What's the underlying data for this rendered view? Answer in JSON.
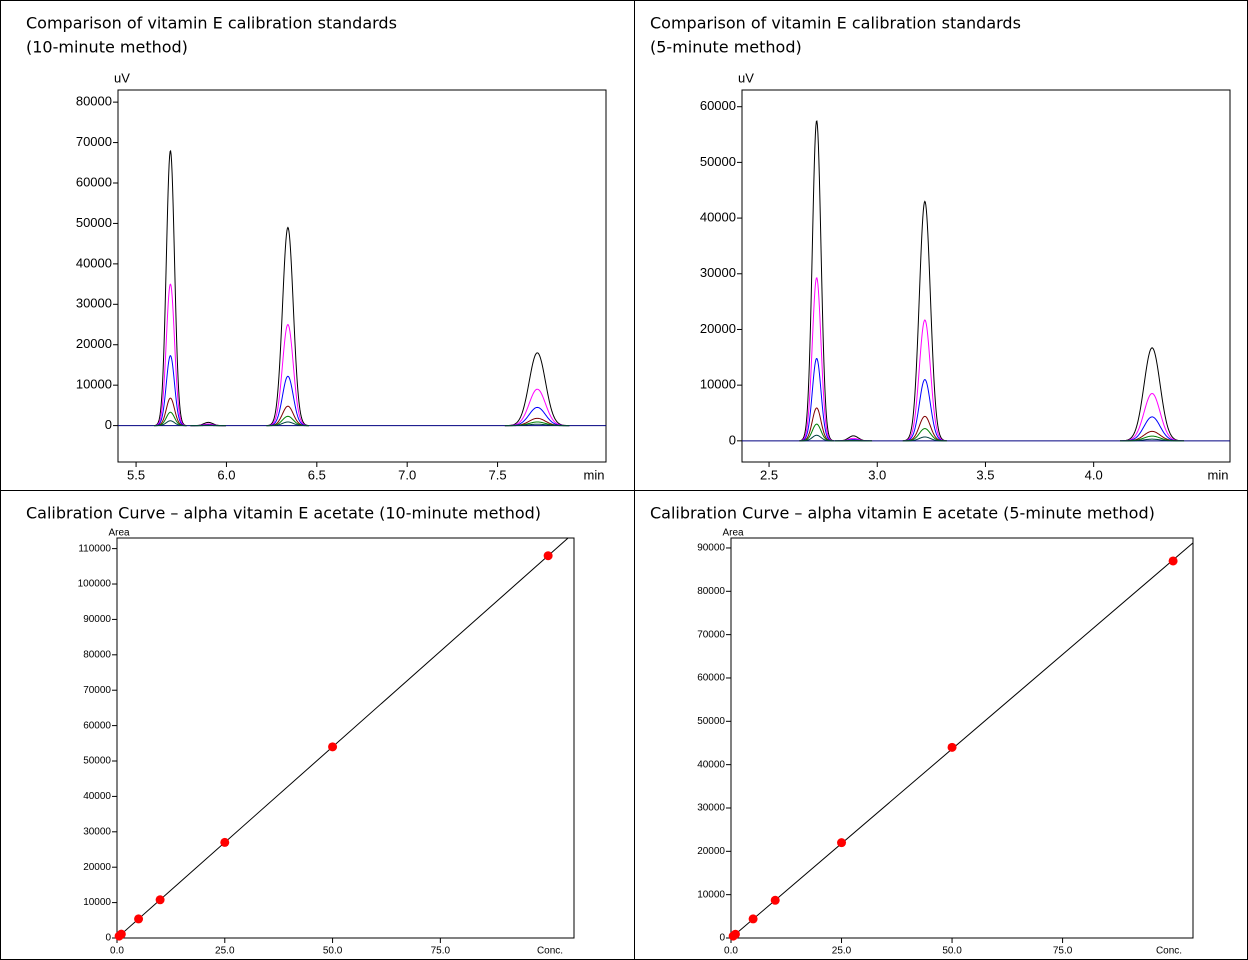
{
  "chart_data": [
    {
      "type": "chromatogram",
      "title": "Comparison of vitamin E calibration standards",
      "subtitle": "(10-minute method)",
      "ylabel": "uV",
      "xlabel": "min",
      "xlim": [
        5.4,
        8.1
      ],
      "ylim": [
        -9000,
        83000
      ],
      "xticks": [
        5.5,
        {
          "value": 6,
          "label": "6.0"
        },
        6.5,
        {
          "value": 7,
          "label": "7.0"
        },
        7.5
      ],
      "yticks": [
        0,
        10000,
        20000,
        30000,
        40000,
        50000,
        60000,
        70000,
        80000
      ],
      "x": [
        5.69,
        5.9,
        6.34,
        7.72
      ],
      "series": [
        {
          "color": "#000000",
          "values": [
            68000,
            800,
            49000,
            18000
          ]
        },
        {
          "color": "#ff00ff",
          "values": [
            35000,
            400,
            25000,
            9000
          ]
        },
        {
          "color": "#0000ff",
          "values": [
            17300,
            200,
            12200,
            4500
          ]
        },
        {
          "color": "#800000",
          "values": [
            6800,
            100,
            4800,
            1800
          ]
        },
        {
          "color": "#008000",
          "values": [
            3300,
            50,
            2300,
            900
          ]
        },
        {
          "color": "#004040",
          "values": [
            1200,
            20,
            900,
            350
          ]
        }
      ]
    },
    {
      "type": "chromatogram",
      "title": "Comparison of vitamin E calibration standards",
      "subtitle": "(5-minute method)",
      "ylabel": "uV",
      "xlabel": "min",
      "xlim": [
        2.375,
        4.63
      ],
      "ylim": [
        -3800,
        63000
      ],
      "xticks": [
        2.5,
        {
          "value": 3,
          "label": "3.0"
        },
        3.5,
        {
          "value": 4,
          "label": "4.0"
        }
      ],
      "yticks": [
        0,
        10000,
        20000,
        30000,
        40000,
        50000,
        60000
      ],
      "x": [
        2.72,
        2.89,
        3.22,
        4.27
      ],
      "series": [
        {
          "color": "#000000",
          "values": [
            57500,
            900,
            43000,
            16700
          ]
        },
        {
          "color": "#ff00ff",
          "values": [
            29300,
            450,
            21700,
            8500
          ]
        },
        {
          "color": "#0000ff",
          "values": [
            14800,
            220,
            11000,
            4300
          ]
        },
        {
          "color": "#800000",
          "values": [
            5900,
            90,
            4400,
            1700
          ]
        },
        {
          "color": "#008000",
          "values": [
            3000,
            45,
            2200,
            850
          ]
        },
        {
          "color": "#004040",
          "values": [
            1000,
            15,
            700,
            300
          ]
        }
      ]
    },
    {
      "type": "scatter",
      "title": "Calibration Curve – alpha vitamin E acetate (10-minute method)",
      "xlabel": "Conc.",
      "ylabel": "Area",
      "xlim": [
        0,
        106
      ],
      "ylim": [
        0,
        113000
      ],
      "xticks": [
        {
          "value": 0,
          "label": "0.0"
        },
        {
          "value": 25,
          "label": "25.0"
        },
        {
          "value": 50,
          "label": "50.0"
        },
        {
          "value": 75,
          "label": "75.0"
        }
      ],
      "yticks": [
        0,
        10000,
        20000,
        30000,
        40000,
        50000,
        60000,
        70000,
        80000,
        90000,
        100000,
        110000
      ],
      "x": [
        0.5,
        1,
        5,
        10,
        25,
        50,
        100
      ],
      "values": [
        540,
        1080,
        5400,
        10800,
        27000,
        54000,
        108000
      ],
      "color": "#ff0000",
      "trendline": true,
      "trendline_color": "#000000"
    },
    {
      "type": "scatter",
      "title": "Calibration Curve – alpha vitamin E acetate (5-minute method)",
      "xlabel": "Conc.",
      "ylabel": "Area",
      "xlim": [
        0,
        104.5
      ],
      "ylim": [
        0,
        92300
      ],
      "xticks": [
        {
          "value": 0,
          "label": "0.0"
        },
        {
          "value": 25,
          "label": "25.0"
        },
        {
          "value": 50,
          "label": "50.0"
        },
        {
          "value": 75,
          "label": "75.0"
        }
      ],
      "yticks": [
        0,
        10000,
        20000,
        30000,
        40000,
        50000,
        60000,
        70000,
        80000,
        90000
      ],
      "x": [
        0.5,
        1,
        5,
        10,
        25,
        50,
        100
      ],
      "values": [
        440,
        870,
        4400,
        8700,
        22000,
        44000,
        87000
      ],
      "color": "#ff0000",
      "trendline": true,
      "trendline_color": "#000000"
    }
  ]
}
